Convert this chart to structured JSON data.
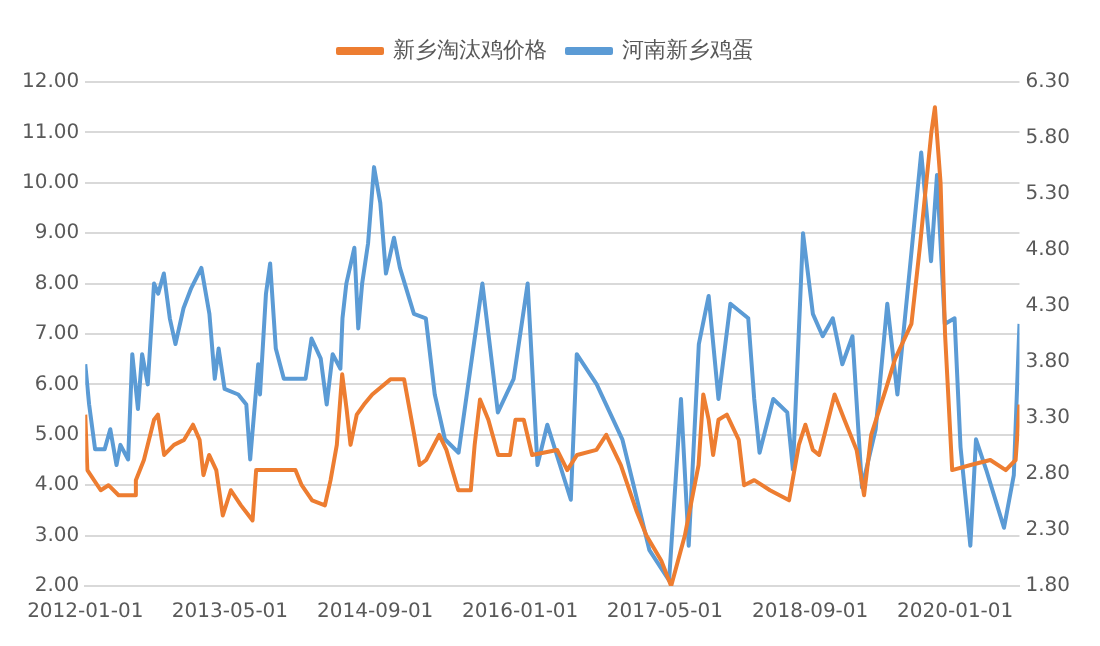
{
  "chart_data": {
    "type": "line",
    "xlim": [
      "2012-01-01",
      "2020-08-04"
    ],
    "xticks": [
      "2012-01-01",
      "2013-05-01",
      "2014-09-01",
      "2016-01-01",
      "2017-05-01",
      "2018-09-01",
      "2020-01-01"
    ],
    "ylim": [
      2,
      12
    ],
    "yticks": [
      {
        "value": 2,
        "label": "2.00"
      },
      {
        "value": 3,
        "label": "3.00"
      },
      {
        "value": 4,
        "label": "4.00"
      },
      {
        "value": 5,
        "label": "5.00"
      },
      {
        "value": 6,
        "label": "6.00"
      },
      {
        "value": 7,
        "label": "7.00"
      },
      {
        "value": 8,
        "label": "8.00"
      },
      {
        "value": 9,
        "label": "9.00"
      },
      {
        "value": 10,
        "label": "10.00"
      },
      {
        "value": 11,
        "label": "11.00"
      },
      {
        "value": 12,
        "label": "12.00"
      }
    ],
    "y2lim": [
      1.8,
      6.3
    ],
    "y2ticks": [
      {
        "value": 1.8,
        "label": "1.80"
      },
      {
        "value": 2.3,
        "label": "2.30"
      },
      {
        "value": 2.8,
        "label": "2.80"
      },
      {
        "value": 3.3,
        "label": "3.30"
      },
      {
        "value": 3.8,
        "label": "3.80"
      },
      {
        "value": 4.3,
        "label": "4.30"
      },
      {
        "value": 4.8,
        "label": "4.80"
      },
      {
        "value": 5.3,
        "label": "5.30"
      },
      {
        "value": 5.8,
        "label": "5.80"
      },
      {
        "value": 6.3,
        "label": "6.30"
      }
    ],
    "grid": "y",
    "legend": "top",
    "series": [
      {
        "name": "新乡淘汰鸡价格",
        "color": "#ed7d31",
        "x": [
          "2012-01-01",
          "2012-01-08",
          "2012-02-22",
          "2012-03-19",
          "2012-04-22",
          "2012-06-13",
          "2012-06-19",
          "2012-07-16",
          "2012-08-19",
          "2012-09-01",
          "2012-09-22",
          "2012-10-25",
          "2012-11-28",
          "2012-12-28",
          "2013-01-19",
          "2013-02-01",
          "2013-02-20",
          "2013-03-16",
          "2013-04-07",
          "2013-05-04",
          "2013-06-07",
          "2013-07-16",
          "2013-07-28",
          "2013-12-07",
          "2013-12-28",
          "2014-02-01",
          "2014-03-16",
          "2014-04-04",
          "2014-04-25",
          "2014-05-13",
          "2014-05-28",
          "2014-06-10",
          "2014-07-01",
          "2014-07-25",
          "2014-08-22",
          "2014-10-22",
          "2014-12-07",
          "2015-01-10",
          "2015-01-28",
          "2015-02-19",
          "2015-04-04",
          "2015-04-28",
          "2015-06-07",
          "2015-07-19",
          "2015-08-01",
          "2015-08-19",
          "2015-09-16",
          "2015-10-19",
          "2015-11-28",
          "2015-12-16",
          "2016-01-13",
          "2016-02-10",
          "2016-05-04",
          "2016-06-07",
          "2016-07-10",
          "2016-09-13",
          "2016-10-16",
          "2016-12-04",
          "2017-01-25",
          "2017-02-28",
          "2017-04-19",
          "2017-05-22",
          "2017-07-07",
          "2017-08-22",
          "2017-09-07",
          "2017-09-25",
          "2017-10-10",
          "2017-10-28",
          "2017-11-25",
          "2018-01-04",
          "2018-01-22",
          "2018-02-25",
          "2018-04-19",
          "2018-06-22",
          "2018-07-25",
          "2018-08-16",
          "2018-09-10",
          "2018-10-01",
          "2018-10-19",
          "2018-11-22",
          "2018-12-25",
          "2019-02-04",
          "2019-03-01",
          "2019-03-25",
          "2019-05-13",
          "2019-06-13",
          "2019-08-07",
          "2019-09-04",
          "2019-10-13",
          "2019-10-25",
          "2019-11-13",
          "2019-11-28",
          "2019-12-22",
          "2020-02-22",
          "2020-04-28",
          "2020-06-19",
          "2020-07-22",
          "2020-08-04"
        ],
        "values": [
          5.4,
          4.3,
          3.9,
          4.0,
          3.8,
          3.8,
          4.1,
          4.5,
          5.3,
          5.4,
          4.6,
          4.8,
          4.9,
          5.2,
          4.9,
          4.2,
          4.6,
          4.3,
          3.4,
          3.9,
          3.6,
          3.3,
          4.3,
          4.3,
          4.0,
          3.7,
          3.6,
          4.1,
          4.8,
          6.2,
          5.5,
          4.8,
          5.4,
          5.6,
          5.8,
          6.1,
          6.1,
          5.0,
          4.4,
          4.5,
          5.0,
          4.7,
          3.9,
          3.9,
          4.8,
          5.7,
          5.3,
          4.6,
          4.6,
          5.3,
          5.3,
          4.6,
          4.7,
          4.3,
          4.6,
          4.7,
          5.0,
          4.4,
          3.5,
          3.0,
          2.5,
          2.0,
          3.0,
          4.4,
          5.8,
          5.3,
          4.6,
          5.3,
          5.4,
          4.9,
          4.0,
          4.1,
          3.9,
          3.7,
          4.8,
          5.2,
          4.7,
          4.6,
          5.0,
          5.8,
          5.3,
          4.7,
          3.8,
          5.0,
          5.9,
          6.5,
          7.2,
          8.7,
          11.0,
          11.5,
          10.0,
          7.0,
          4.3,
          4.4,
          4.5,
          4.3,
          4.5,
          5.6
        ]
      },
      {
        "name": "河南新乡鸡蛋",
        "color": "#5b9bd5",
        "axis": "y2",
        "x": [
          "2012-01-01",
          "2012-01-14",
          "2012-02-03",
          "2012-03-06",
          "2012-03-25",
          "2012-04-15",
          "2012-04-28",
          "2012-05-24",
          "2012-06-07",
          "2012-06-26",
          "2012-07-10",
          "2012-07-29",
          "2012-08-19",
          "2012-09-02",
          "2012-09-21",
          "2012-10-11",
          "2012-10-30",
          "2012-11-26",
          "2012-12-22",
          "2013-01-25",
          "2013-02-21",
          "2013-03-11",
          "2013-03-24",
          "2013-04-13",
          "2013-05-29",
          "2013-06-25",
          "2013-07-08",
          "2013-08-04",
          "2013-08-10",
          "2013-08-30",
          "2013-09-13",
          "2013-10-02",
          "2013-10-29",
          "2014-01-10",
          "2014-01-30",
          "2014-03-02",
          "2014-03-22",
          "2014-04-11",
          "2014-05-07",
          "2014-05-14",
          "2014-05-27",
          "2014-06-23",
          "2014-07-06",
          "2014-07-19",
          "2014-08-08",
          "2014-08-28",
          "2014-09-18",
          "2014-10-07",
          "2014-11-03",
          "2014-11-23",
          "2015-01-09",
          "2015-02-18",
          "2015-03-20",
          "2015-04-23",
          "2015-06-08",
          "2015-08-27",
          "2015-10-18",
          "2015-12-10",
          "2016-01-26",
          "2016-02-28",
          "2016-04-01",
          "2016-06-19",
          "2016-07-09",
          "2016-09-14",
          "2016-12-09",
          "2017-03-10",
          "2017-05-15",
          "2017-06-24",
          "2017-07-20",
          "2017-08-23",
          "2017-09-25",
          "2017-10-28",
          "2017-12-07",
          "2018-02-05",
          "2018-02-25",
          "2018-03-15",
          "2018-04-30",
          "2018-06-16",
          "2018-07-05",
          "2018-08-08",
          "2018-09-10",
          "2018-10-13",
          "2018-11-16",
          "2018-12-18",
          "2019-01-21",
          "2019-02-22",
          "2019-04-09",
          "2019-05-18",
          "2019-06-21",
          "2019-08-06",
          "2019-09-09",
          "2019-10-12",
          "2019-11-01",
          "2019-11-27",
          "2019-12-30",
          "2020-01-19",
          "2020-02-21",
          "2020-03-11",
          "2020-04-14",
          "2020-06-13",
          "2020-07-16",
          "2020-08-04"
        ],
        "values": [
          3.78,
          3.42,
          3.02,
          3.02,
          3.2,
          2.88,
          3.06,
          2.93,
          3.87,
          3.38,
          3.87,
          3.6,
          4.5,
          4.41,
          4.59,
          4.19,
          3.96,
          4.28,
          4.46,
          4.64,
          4.23,
          3.65,
          3.92,
          3.56,
          3.51,
          3.42,
          2.93,
          3.78,
          3.51,
          4.41,
          4.68,
          3.92,
          3.65,
          3.65,
          4.01,
          3.83,
          3.42,
          3.87,
          3.74,
          4.19,
          4.5,
          4.82,
          4.1,
          4.5,
          4.86,
          5.54,
          5.22,
          4.59,
          4.91,
          4.64,
          4.23,
          4.19,
          3.51,
          3.11,
          2.99,
          4.5,
          3.35,
          3.65,
          4.5,
          2.88,
          3.24,
          2.57,
          3.87,
          3.6,
          3.11,
          2.12,
          1.85,
          3.47,
          2.16,
          3.96,
          4.39,
          3.47,
          4.32,
          4.19,
          3.47,
          2.99,
          3.47,
          3.35,
          2.84,
          4.95,
          4.23,
          4.03,
          4.19,
          3.78,
          4.03,
          2.68,
          3.2,
          4.32,
          3.51,
          4.75,
          5.67,
          4.7,
          5.47,
          4.14,
          4.19,
          3.04,
          2.16,
          3.11,
          2.84,
          2.32,
          2.79,
          4.14
        ]
      }
    ]
  }
}
